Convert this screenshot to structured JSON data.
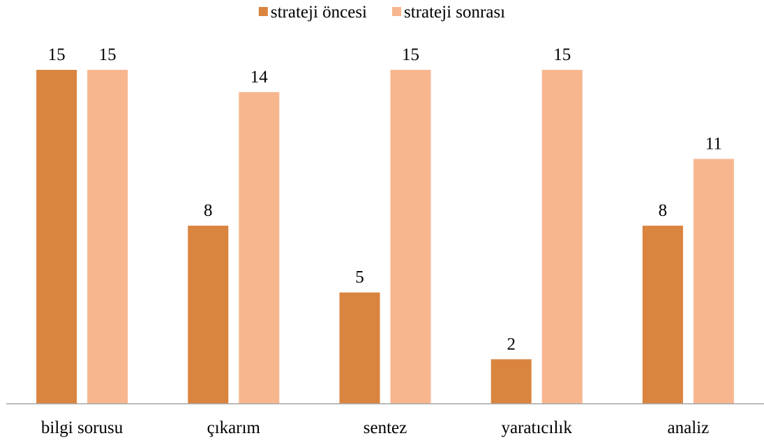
{
  "chart_data": {
    "type": "bar",
    "categories": [
      "bilgi sorusu",
      "çıkarım",
      "sentez",
      "yaratıcılık",
      "analiz"
    ],
    "series": [
      {
        "name": "strateji öncesi",
        "color": "#d9843f",
        "values": [
          15,
          8,
          5,
          2,
          8
        ]
      },
      {
        "name": "strateji sonrası",
        "color": "#f8b68f",
        "values": [
          15,
          14,
          15,
          15,
          11
        ]
      }
    ],
    "legend": "top"
  }
}
